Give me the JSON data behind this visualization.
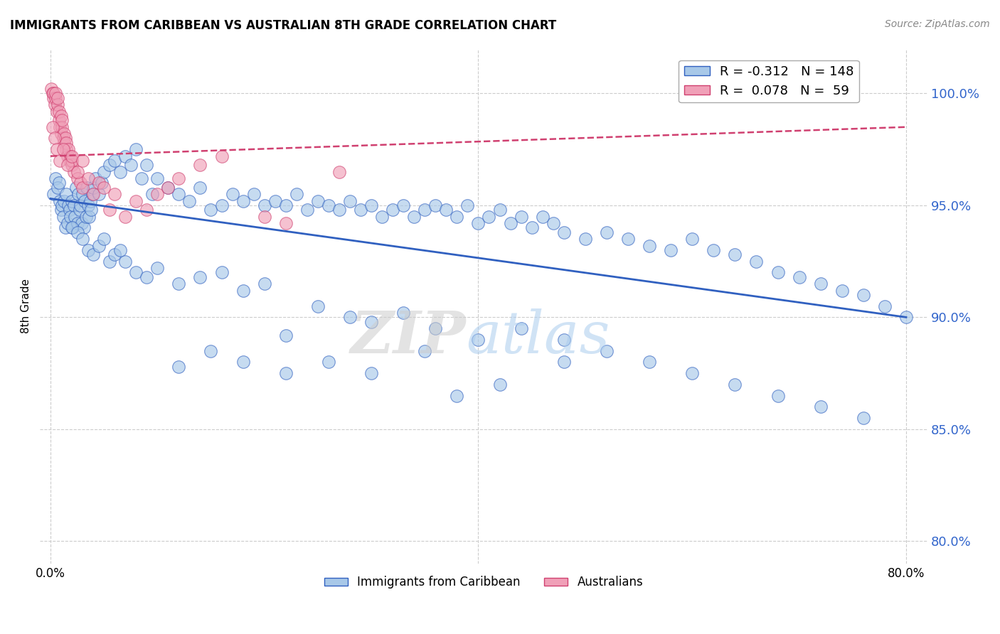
{
  "title": "IMMIGRANTS FROM CARIBBEAN VS AUSTRALIAN 8TH GRADE CORRELATION CHART",
  "source": "Source: ZipAtlas.com",
  "ylabel": "8th Grade",
  "y_right_ticks": [
    80.0,
    85.0,
    90.0,
    95.0,
    100.0
  ],
  "x_ticks": [
    0.0,
    40.0,
    80.0
  ],
  "xlim": [
    -1.0,
    82.0
  ],
  "ylim": [
    79.0,
    102.0
  ],
  "blue_R": -0.312,
  "blue_N": 148,
  "pink_R": 0.078,
  "pink_N": 59,
  "blue_color": "#a8c8e8",
  "pink_color": "#f0a0b8",
  "blue_line_color": "#3060c0",
  "pink_line_color": "#d04070",
  "legend_label_blue": "Immigrants from Caribbean",
  "legend_label_pink": "Australians",
  "blue_line_x": [
    0,
    80
  ],
  "blue_line_y": [
    95.3,
    90.0
  ],
  "pink_line_x": [
    0,
    80
  ],
  "pink_line_y": [
    97.2,
    98.5
  ],
  "blue_scatter_x": [
    0.3,
    0.5,
    0.7,
    0.8,
    0.9,
    1.0,
    1.1,
    1.2,
    1.3,
    1.4,
    1.5,
    1.6,
    1.7,
    1.8,
    1.9,
    2.0,
    2.1,
    2.2,
    2.3,
    2.4,
    2.5,
    2.6,
    2.7,
    2.8,
    2.9,
    3.0,
    3.1,
    3.2,
    3.3,
    3.4,
    3.5,
    3.6,
    3.7,
    3.8,
    3.9,
    4.0,
    4.2,
    4.5,
    4.8,
    5.0,
    5.5,
    6.0,
    6.5,
    7.0,
    7.5,
    8.0,
    8.5,
    9.0,
    9.5,
    10.0,
    11.0,
    12.0,
    13.0,
    14.0,
    15.0,
    16.0,
    17.0,
    18.0,
    19.0,
    20.0,
    21.0,
    22.0,
    23.0,
    24.0,
    25.0,
    26.0,
    27.0,
    28.0,
    29.0,
    30.0,
    31.0,
    32.0,
    33.0,
    34.0,
    35.0,
    36.0,
    37.0,
    38.0,
    39.0,
    40.0,
    41.0,
    42.0,
    43.0,
    44.0,
    45.0,
    46.0,
    47.0,
    48.0,
    50.0,
    52.0,
    54.0,
    56.0,
    58.0,
    60.0,
    62.0,
    64.0,
    66.0,
    68.0,
    70.0,
    72.0,
    74.0,
    76.0,
    78.0,
    80.0,
    2.0,
    2.5,
    3.0,
    3.5,
    4.0,
    4.5,
    5.0,
    5.5,
    6.0,
    6.5,
    7.0,
    8.0,
    9.0,
    10.0,
    12.0,
    14.0,
    16.0,
    18.0,
    20.0,
    22.0,
    25.0,
    28.0,
    30.0,
    33.0,
    36.0,
    40.0,
    44.0,
    48.0,
    52.0,
    56.0,
    60.0,
    64.0,
    68.0,
    72.0,
    76.0,
    48.0,
    42.0,
    38.0,
    35.0,
    30.0,
    26.0,
    22.0,
    18.0,
    15.0,
    12.0
  ],
  "blue_scatter_y": [
    95.5,
    96.2,
    95.8,
    96.0,
    95.2,
    94.8,
    95.0,
    94.5,
    95.2,
    94.0,
    95.5,
    94.2,
    95.0,
    94.8,
    94.5,
    95.2,
    94.0,
    95.0,
    94.5,
    95.8,
    94.2,
    95.5,
    94.8,
    95.0,
    94.2,
    95.5,
    94.0,
    95.2,
    94.5,
    95.8,
    95.0,
    94.5,
    95.2,
    94.8,
    95.5,
    95.8,
    96.2,
    95.5,
    96.0,
    96.5,
    96.8,
    97.0,
    96.5,
    97.2,
    96.8,
    97.5,
    96.2,
    96.8,
    95.5,
    96.2,
    95.8,
    95.5,
    95.2,
    95.8,
    94.8,
    95.0,
    95.5,
    95.2,
    95.5,
    95.0,
    95.2,
    95.0,
    95.5,
    94.8,
    95.2,
    95.0,
    94.8,
    95.2,
    94.8,
    95.0,
    94.5,
    94.8,
    95.0,
    94.5,
    94.8,
    95.0,
    94.8,
    94.5,
    95.0,
    94.2,
    94.5,
    94.8,
    94.2,
    94.5,
    94.0,
    94.5,
    94.2,
    93.8,
    93.5,
    93.8,
    93.5,
    93.2,
    93.0,
    93.5,
    93.0,
    92.8,
    92.5,
    92.0,
    91.8,
    91.5,
    91.2,
    91.0,
    90.5,
    90.0,
    94.0,
    93.8,
    93.5,
    93.0,
    92.8,
    93.2,
    93.5,
    92.5,
    92.8,
    93.0,
    92.5,
    92.0,
    91.8,
    92.2,
    91.5,
    91.8,
    92.0,
    91.2,
    91.5,
    89.2,
    90.5,
    90.0,
    89.8,
    90.2,
    89.5,
    89.0,
    89.5,
    89.0,
    88.5,
    88.0,
    87.5,
    87.0,
    86.5,
    86.0,
    85.5,
    88.0,
    87.0,
    86.5,
    88.5,
    87.5,
    88.0,
    87.5,
    88.0,
    88.5,
    87.8
  ],
  "pink_scatter_x": [
    0.1,
    0.2,
    0.3,
    0.3,
    0.4,
    0.5,
    0.5,
    0.6,
    0.7,
    0.7,
    0.8,
    0.8,
    0.9,
    1.0,
    1.0,
    1.1,
    1.1,
    1.2,
    1.3,
    1.3,
    1.4,
    1.5,
    1.5,
    1.6,
    1.7,
    1.8,
    1.9,
    2.0,
    2.0,
    2.2,
    2.5,
    2.8,
    3.0,
    3.5,
    4.0,
    4.5,
    5.0,
    5.5,
    6.0,
    7.0,
    8.0,
    9.0,
    10.0,
    11.0,
    12.0,
    14.0,
    16.0,
    20.0,
    22.0,
    27.0,
    0.2,
    0.4,
    0.6,
    0.9,
    1.2,
    1.6,
    2.0,
    2.5,
    3.0
  ],
  "pink_scatter_y": [
    100.2,
    100.0,
    99.8,
    100.0,
    99.5,
    99.8,
    100.0,
    99.2,
    99.5,
    99.8,
    98.8,
    99.2,
    98.5,
    99.0,
    98.2,
    98.5,
    98.8,
    98.0,
    98.2,
    97.8,
    98.0,
    97.5,
    97.8,
    97.2,
    97.5,
    97.0,
    97.2,
    96.8,
    97.0,
    96.5,
    96.2,
    96.0,
    95.8,
    96.2,
    95.5,
    96.0,
    95.8,
    94.8,
    95.5,
    94.5,
    95.2,
    94.8,
    95.5,
    95.8,
    96.2,
    96.8,
    97.2,
    94.5,
    94.2,
    96.5,
    98.5,
    98.0,
    97.5,
    97.0,
    97.5,
    96.8,
    97.2,
    96.5,
    97.0
  ]
}
